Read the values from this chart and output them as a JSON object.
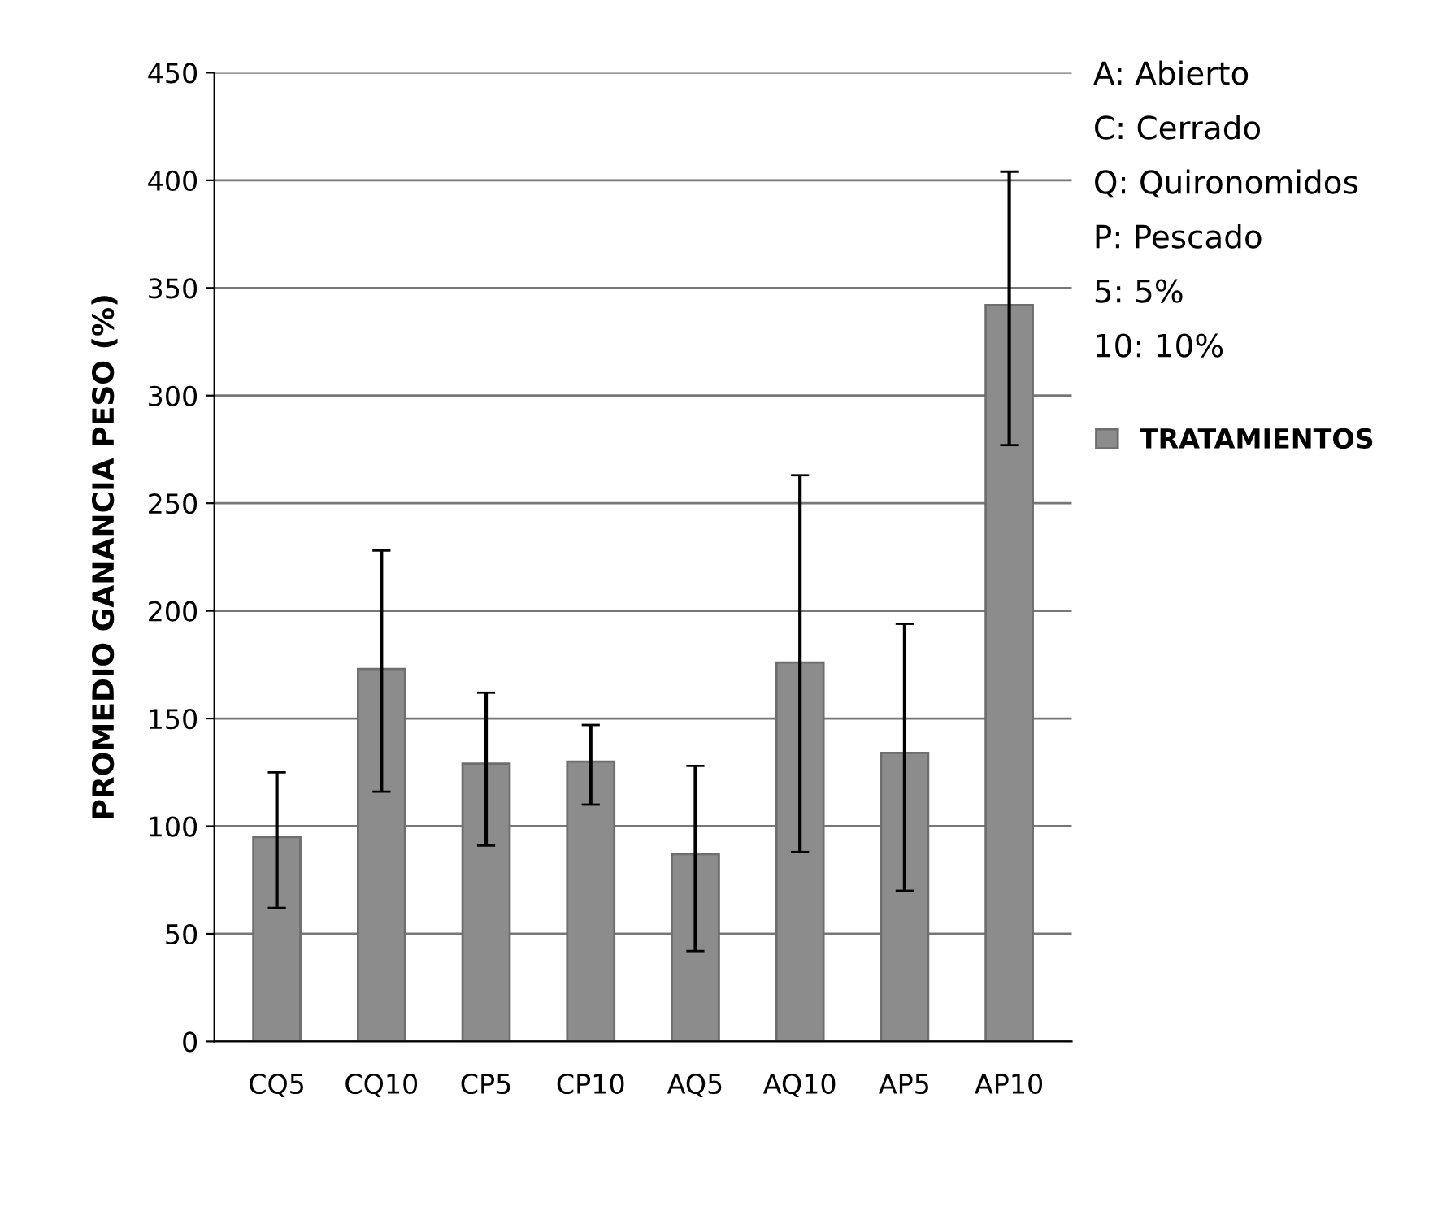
{
  "chart_data": {
    "type": "bar",
    "ylabel": "PROMEDIO GANANCIA PESO (%)",
    "categories": [
      "CQ5",
      "CQ10",
      "CP5",
      "CP10",
      "AQ5",
      "AQ10",
      "AP5",
      "AP10"
    ],
    "series": [
      {
        "name": "TRATAMIENTOS",
        "color": "#8c8c8c",
        "values": [
          95,
          173,
          129,
          130,
          87,
          176,
          134,
          342
        ],
        "errors": [
          [
            62,
            125
          ],
          [
            116,
            228
          ],
          [
            91,
            162
          ],
          [
            110,
            147
          ],
          [
            42,
            128
          ],
          [
            88,
            263
          ],
          [
            70,
            194
          ],
          [
            277,
            404
          ]
        ]
      }
    ],
    "ylim": [
      0,
      450
    ],
    "yticks": [
      0,
      50,
      100,
      150,
      200,
      250,
      300,
      350,
      400,
      450
    ],
    "grid": "y",
    "legend": "right",
    "annotations": [
      "A: Abierto",
      "C: Cerrado",
      "Q: Quironomidos",
      "P: Pescado",
      "5: 5%",
      "10: 10%"
    ]
  }
}
